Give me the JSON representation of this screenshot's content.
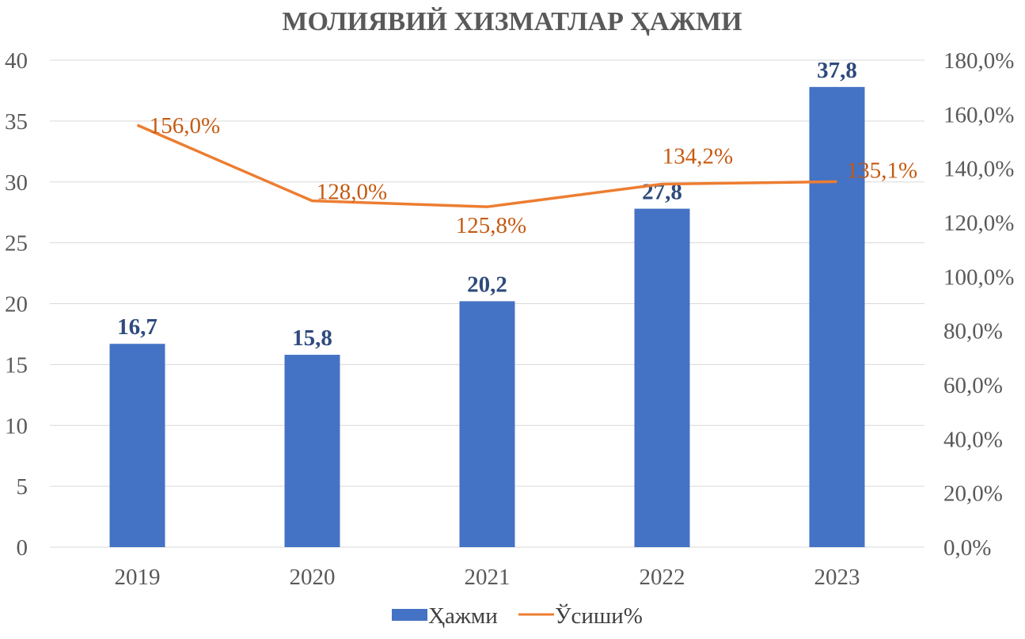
{
  "chart_data": {
    "type": "bar",
    "title": "МОЛИЯВИЙ ХИЗМАТЛАР ҲАЖМИ",
    "categories": [
      "2019",
      "2020",
      "2021",
      "2022",
      "2023"
    ],
    "series": [
      {
        "name": "Ҳажми",
        "type": "bar",
        "axis": "left",
        "values": [
          16.7,
          15.8,
          20.2,
          27.8,
          37.8
        ],
        "labels": [
          "16,7",
          "15,8",
          "20,2",
          "27,8",
          "37,8"
        ],
        "color": "#4472C4"
      },
      {
        "name": "Ўсиши%",
        "type": "line",
        "axis": "right",
        "values": [
          156.0,
          128.0,
          125.8,
          134.2,
          135.1
        ],
        "labels": [
          "156,0%",
          "128,0%",
          "125,8%",
          "134,2%",
          "135,1%"
        ],
        "color": "#ED7D31"
      }
    ],
    "y_left": {
      "range": [
        0,
        40
      ],
      "ticks": [
        "0",
        "5",
        "10",
        "15",
        "20",
        "25",
        "30",
        "35",
        "40"
      ]
    },
    "y_right": {
      "range": [
        0,
        180
      ],
      "ticks": [
        "0,0%",
        "20,0%",
        "40,0%",
        "60,0%",
        "80,0%",
        "100,0%",
        "120,0%",
        "140,0%",
        "160,0%",
        "180,0%"
      ]
    },
    "grid": true,
    "legend": "bottom"
  }
}
